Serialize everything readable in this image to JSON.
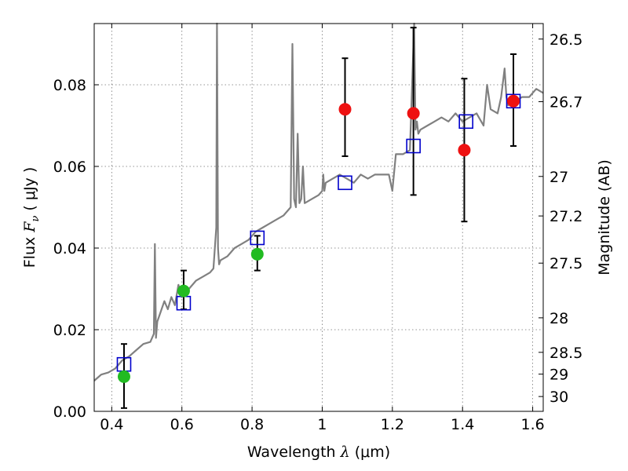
{
  "chart_data": {
    "type": "scatter",
    "xlabel": {
      "prefix": "Wavelength  ",
      "symbol": "λ",
      "suffix": " (μm)"
    },
    "ylabel": {
      "prefix": "Flux  ",
      "symbol": "F",
      "sub": "ν",
      "suffix": "  ( μJy )"
    },
    "y2label": "Magnitude (AB)",
    "xlim": [
      0.35,
      1.63
    ],
    "ylim": [
      0.0,
      0.095
    ],
    "x_ticks": [
      {
        "v": 0.4,
        "label": "0.4"
      },
      {
        "v": 0.6,
        "label": "0.6"
      },
      {
        "v": 0.8,
        "label": "0.8"
      },
      {
        "v": 1.0,
        "label": "1"
      },
      {
        "v": 1.2,
        "label": "1.2"
      },
      {
        "v": 1.4,
        "label": "1.4"
      },
      {
        "v": 1.6,
        "label": "1.6"
      }
    ],
    "y_ticks": [
      {
        "v": 0.0,
        "label": "0.00"
      },
      {
        "v": 0.02,
        "label": "0.02"
      },
      {
        "v": 0.04,
        "label": "0.04"
      },
      {
        "v": 0.06,
        "label": "0.06"
      },
      {
        "v": 0.08,
        "label": "0.08"
      }
    ],
    "mag_ticks": [
      {
        "mag": 26.5,
        "label": "26.5"
      },
      {
        "mag": 26.7,
        "label": "26.7"
      },
      {
        "mag": 27.0,
        "label": "27"
      },
      {
        "mag": 27.2,
        "label": "27.2"
      },
      {
        "mag": 27.5,
        "label": "27.5"
      },
      {
        "mag": 28.0,
        "label": "28"
      },
      {
        "mag": 28.5,
        "label": "28.5"
      },
      {
        "mag": 29.0,
        "label": "29"
      },
      {
        "mag": 30.0,
        "label": "30"
      }
    ],
    "grid": true,
    "colors": {
      "model": "#808080",
      "model_box": "#0000cc",
      "detection_green": "#22bb22",
      "detection_red": "#ee1111",
      "errorbar": "#000000"
    },
    "model_spectrum": {
      "x": [
        0.35,
        0.37,
        0.39,
        0.41,
        0.43,
        0.45,
        0.47,
        0.49,
        0.51,
        0.52,
        0.523,
        0.526,
        0.53,
        0.55,
        0.56,
        0.57,
        0.58,
        0.59,
        0.6,
        0.61,
        0.62,
        0.64,
        0.66,
        0.68,
        0.69,
        0.698,
        0.7,
        0.703,
        0.706,
        0.71,
        0.73,
        0.75,
        0.77,
        0.79,
        0.81,
        0.83,
        0.85,
        0.87,
        0.89,
        0.91,
        0.915,
        0.92,
        0.925,
        0.93,
        0.935,
        0.94,
        0.945,
        0.95,
        0.97,
        0.99,
        1.0,
        1.003,
        1.006,
        1.01,
        1.03,
        1.05,
        1.07,
        1.09,
        1.11,
        1.13,
        1.15,
        1.17,
        1.19,
        1.2,
        1.21,
        1.23,
        1.25,
        1.262,
        1.266,
        1.27,
        1.274,
        1.28,
        1.3,
        1.32,
        1.34,
        1.36,
        1.38,
        1.4,
        1.42,
        1.44,
        1.46,
        1.47,
        1.48,
        1.5,
        1.51,
        1.52,
        1.525,
        1.53,
        1.55,
        1.57,
        1.59,
        1.61,
        1.63
      ],
      "y": [
        0.0075,
        0.009,
        0.0095,
        0.0105,
        0.0125,
        0.0135,
        0.015,
        0.0165,
        0.017,
        0.019,
        0.041,
        0.018,
        0.022,
        0.027,
        0.025,
        0.028,
        0.026,
        0.031,
        0.028,
        0.03,
        0.03,
        0.032,
        0.033,
        0.034,
        0.035,
        0.045,
        0.095,
        0.04,
        0.036,
        0.037,
        0.038,
        0.04,
        0.041,
        0.042,
        0.044,
        0.045,
        0.046,
        0.047,
        0.048,
        0.05,
        0.09,
        0.052,
        0.05,
        0.068,
        0.051,
        0.052,
        0.06,
        0.051,
        0.052,
        0.053,
        0.054,
        0.058,
        0.054,
        0.056,
        0.057,
        0.058,
        0.057,
        0.056,
        0.058,
        0.057,
        0.058,
        0.058,
        0.058,
        0.054,
        0.063,
        0.063,
        0.064,
        0.095,
        0.069,
        0.071,
        0.068,
        0.069,
        0.07,
        0.071,
        0.072,
        0.071,
        0.073,
        0.071,
        0.072,
        0.073,
        0.07,
        0.08,
        0.074,
        0.073,
        0.077,
        0.084,
        0.077,
        0.075,
        0.076,
        0.077,
        0.077,
        0.079,
        0.078
      ]
    },
    "model_boxes": [
      {
        "x": 0.435,
        "y": 0.0115
      },
      {
        "x": 0.605,
        "y": 0.0265
      },
      {
        "x": 0.815,
        "y": 0.0425
      },
      {
        "x": 1.065,
        "y": 0.056
      },
      {
        "x": 1.26,
        "y": 0.065
      },
      {
        "x": 1.41,
        "y": 0.071
      },
      {
        "x": 1.545,
        "y": 0.076
      }
    ],
    "observed": [
      {
        "x": 0.435,
        "y": 0.0085,
        "err_lo": 0.0008,
        "err_hi": 0.0165,
        "color": "green"
      },
      {
        "x": 0.605,
        "y": 0.0295,
        "err_lo": 0.025,
        "err_hi": 0.0345,
        "color": "green"
      },
      {
        "x": 0.815,
        "y": 0.0385,
        "err_lo": 0.0345,
        "err_hi": 0.043,
        "color": "green"
      },
      {
        "x": 1.065,
        "y": 0.074,
        "err_lo": 0.0625,
        "err_hi": 0.0865,
        "color": "red"
      },
      {
        "x": 1.26,
        "y": 0.073,
        "err_lo": 0.053,
        "err_hi": 0.094,
        "color": "red"
      },
      {
        "x": 1.405,
        "y": 0.064,
        "err_lo": 0.0465,
        "err_hi": 0.0815,
        "color": "red"
      },
      {
        "x": 1.545,
        "y": 0.076,
        "err_lo": 0.065,
        "err_hi": 0.0875,
        "color": "red"
      }
    ]
  }
}
